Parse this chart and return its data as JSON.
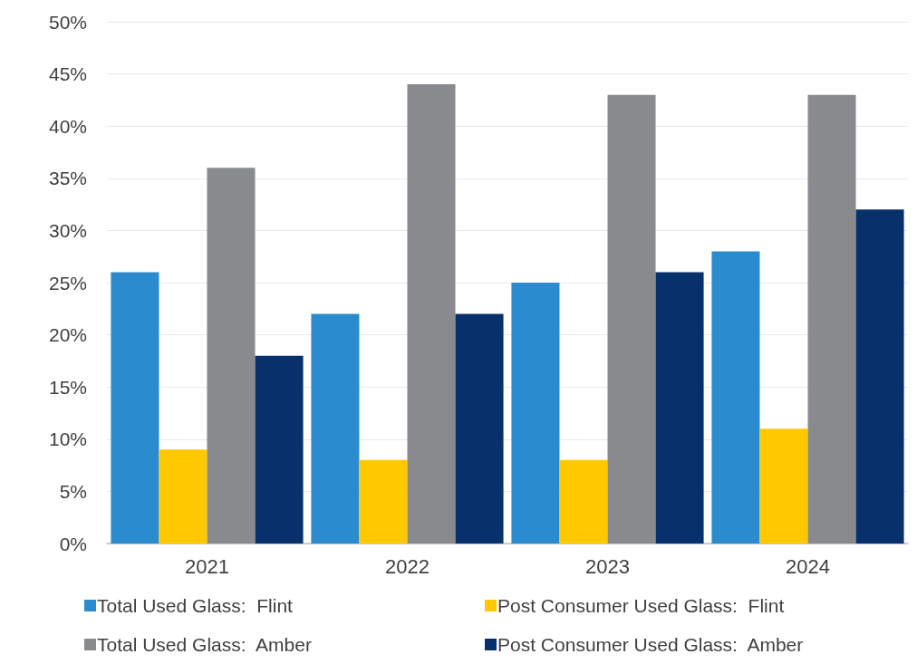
{
  "chart_data": {
    "type": "bar",
    "categories": [
      "2021",
      "2022",
      "2023",
      "2024"
    ],
    "series": [
      {
        "name": "Total Used Glass:  Flint",
        "color": "#2a8ccf",
        "values": [
          26,
          22,
          25,
          28
        ]
      },
      {
        "name": "Post Consumer Used Glass:  Flint",
        "color": "#ffc800",
        "values": [
          9,
          8,
          8,
          11
        ]
      },
      {
        "name": "Total Used Glass:  Amber",
        "color": "#898a8e",
        "values": [
          36,
          44,
          43,
          43
        ]
      },
      {
        "name": "Post Consumer Used Glass:  Amber",
        "color": "#08306b",
        "values": [
          18,
          22,
          26,
          32
        ]
      }
    ],
    "ylim": [
      0,
      50
    ],
    "yticks": [
      {
        "value": 0,
        "label": "0%"
      },
      {
        "value": 5,
        "label": "5%"
      },
      {
        "value": 10,
        "label": "10%"
      },
      {
        "value": 15,
        "label": "15%"
      },
      {
        "value": 20,
        "label": "20%"
      },
      {
        "value": 25,
        "label": "25%"
      },
      {
        "value": 30,
        "label": "30%"
      },
      {
        "value": 35,
        "label": "35%"
      },
      {
        "value": 40,
        "label": "40%"
      },
      {
        "value": 45,
        "label": "45%"
      },
      {
        "value": 50,
        "label": "50%"
      }
    ],
    "grid": "y",
    "legend": "bottom"
  }
}
